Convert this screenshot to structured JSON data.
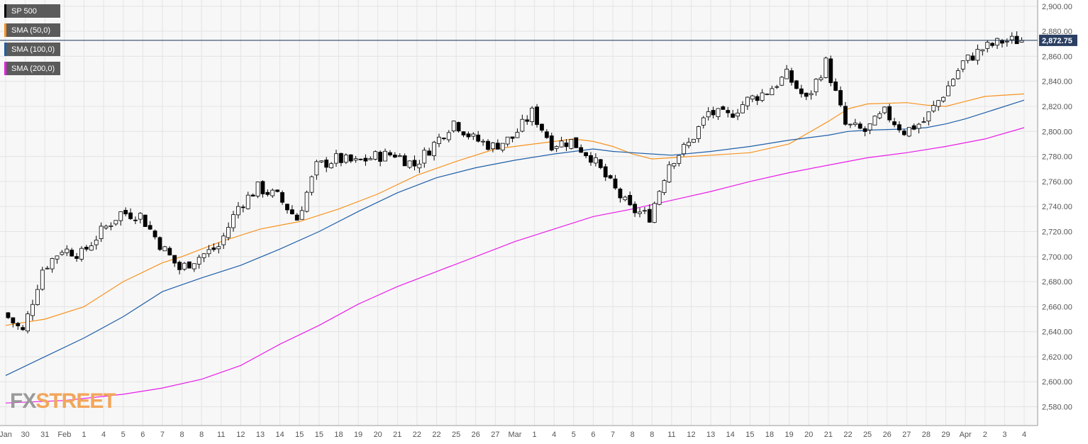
{
  "legend": [
    {
      "label": "SP 500",
      "color": "#000000"
    },
    {
      "label": "SMA (50,0)",
      "color": "#f7931e"
    },
    {
      "label": "SMA (100,0)",
      "color": "#1f5fa8"
    },
    {
      "label": "SMA (200,0)",
      "color": "#e81ee8"
    }
  ],
  "watermark": {
    "part1": "FX",
    "part2": "STREET"
  },
  "chart_data": {
    "type": "candlestick",
    "title": "",
    "ylim": [
      2565,
      2905
    ],
    "y_ticks": [
      2580,
      2600,
      2620,
      2640,
      2660,
      2680,
      2700,
      2720,
      2740,
      2760,
      2780,
      2800,
      2820,
      2840,
      2860,
      2880,
      2900
    ],
    "y_tick_labels": [
      "2,580.00",
      "2,600.00",
      "2,620.00",
      "2,640.00",
      "2,660.00",
      "2,680.00",
      "2,700.00",
      "2,720.00",
      "2,740.00",
      "2,760.00",
      "2,780.00",
      "2,800.00",
      "2,820.00",
      "2,840.00",
      "2,860.00",
      "2,880.00",
      "2,900.00"
    ],
    "x_ticks": [
      "Jan",
      "30",
      "31",
      "Feb",
      "1",
      "4",
      "5",
      "6",
      "7",
      "8",
      "8",
      "11",
      "12",
      "13",
      "14",
      "15",
      "15",
      "18",
      "19",
      "20",
      "21",
      "22",
      "22",
      "25",
      "26",
      "27",
      "Mar",
      "1",
      "4",
      "5",
      "6",
      "7",
      "8",
      "8",
      "11",
      "12",
      "13",
      "14",
      "15",
      "18",
      "19",
      "20",
      "21",
      "22",
      "25",
      "26",
      "27",
      "28",
      "29",
      "Apr",
      "2",
      "3",
      "4"
    ],
    "last_price": 2872.75,
    "last_price_label": "2,872.75",
    "colors": {
      "background": "#f7f7f7",
      "grid": "#e4e4e4",
      "up_body": "#ffffff",
      "down_body": "#000000",
      "price_line": "#1a2f55",
      "price_label_bg": "#2b3f63"
    },
    "anchors": [
      {
        "label": "Jan",
        "close": 2655
      },
      {
        "label": "30",
        "close": 2640
      },
      {
        "label": "31",
        "close": 2690
      },
      {
        "label": "Feb",
        "close": 2706
      },
      {
        "label": "1",
        "close": 2702
      },
      {
        "label": "4",
        "close": 2720
      },
      {
        "label": "5",
        "close": 2735
      },
      {
        "label": "6",
        "close": 2733
      },
      {
        "label": "7",
        "close": 2710
      },
      {
        "label": "8",
        "close": 2690
      },
      {
        "label": "8",
        "close": 2700
      },
      {
        "label": "11",
        "close": 2708
      },
      {
        "label": "12",
        "close": 2740
      },
      {
        "label": "13",
        "close": 2755
      },
      {
        "label": "14",
        "close": 2748
      },
      {
        "label": "15",
        "close": 2730
      },
      {
        "label": "15",
        "close": 2772
      },
      {
        "label": "18",
        "close": 2778
      },
      {
        "label": "19",
        "close": 2775
      },
      {
        "label": "20",
        "close": 2780
      },
      {
        "label": "21",
        "close": 2782
      },
      {
        "label": "22",
        "close": 2773
      },
      {
        "label": "22",
        "close": 2790
      },
      {
        "label": "25",
        "close": 2808
      },
      {
        "label": "26",
        "close": 2794
      },
      {
        "label": "27",
        "close": 2788
      },
      {
        "label": "Mar",
        "close": 2795
      },
      {
        "label": "1",
        "close": 2815
      },
      {
        "label": "4",
        "close": 2790
      },
      {
        "label": "5",
        "close": 2792
      },
      {
        "label": "6",
        "close": 2780
      },
      {
        "label": "7",
        "close": 2758
      },
      {
        "label": "8",
        "close": 2738
      },
      {
        "label": "8",
        "close": 2732
      },
      {
        "label": "11",
        "close": 2775
      },
      {
        "label": "12",
        "close": 2790
      },
      {
        "label": "13",
        "close": 2815
      },
      {
        "label": "14",
        "close": 2812
      },
      {
        "label": "15",
        "close": 2825
      },
      {
        "label": "18",
        "close": 2832
      },
      {
        "label": "19",
        "close": 2845
      },
      {
        "label": "20",
        "close": 2825
      },
      {
        "label": "21",
        "close": 2855
      },
      {
        "label": "22",
        "close": 2805
      },
      {
        "label": "25",
        "close": 2800
      },
      {
        "label": "26",
        "close": 2815
      },
      {
        "label": "27",
        "close": 2800
      },
      {
        "label": "28",
        "close": 2808
      },
      {
        "label": "29",
        "close": 2830
      },
      {
        "label": "Apr",
        "close": 2855
      },
      {
        "label": "2",
        "close": 2866
      },
      {
        "label": "3",
        "close": 2872
      },
      {
        "label": "4",
        "close": 2873
      }
    ],
    "series": [
      {
        "name": "SMA (50,0)",
        "color": "#f7931e",
        "points": [
          [
            0,
            2645
          ],
          [
            2,
            2650
          ],
          [
            4,
            2660
          ],
          [
            6,
            2680
          ],
          [
            8,
            2695
          ],
          [
            9,
            2700
          ],
          [
            11,
            2712
          ],
          [
            13,
            2722
          ],
          [
            15,
            2728
          ],
          [
            17,
            2738
          ],
          [
            19,
            2750
          ],
          [
            21,
            2765
          ],
          [
            23,
            2776
          ],
          [
            25,
            2786
          ],
          [
            27,
            2790
          ],
          [
            29,
            2794
          ],
          [
            30,
            2792
          ],
          [
            31,
            2788
          ],
          [
            32,
            2782
          ],
          [
            33,
            2778
          ],
          [
            34,
            2779
          ],
          [
            36,
            2781
          ],
          [
            38,
            2783
          ],
          [
            40,
            2790
          ],
          [
            42,
            2808
          ],
          [
            43,
            2818
          ],
          [
            44,
            2822
          ],
          [
            46,
            2823
          ],
          [
            47,
            2821
          ],
          [
            48,
            2820
          ],
          [
            49,
            2824
          ],
          [
            50,
            2828
          ],
          [
            52,
            2830
          ]
        ]
      },
      {
        "name": "SMA (100,0)",
        "color": "#1f5fa8",
        "points": [
          [
            0,
            2605
          ],
          [
            2,
            2620
          ],
          [
            4,
            2635
          ],
          [
            6,
            2652
          ],
          [
            8,
            2672
          ],
          [
            10,
            2683
          ],
          [
            12,
            2693
          ],
          [
            14,
            2706
          ],
          [
            16,
            2720
          ],
          [
            18,
            2736
          ],
          [
            20,
            2751
          ],
          [
            22,
            2763
          ],
          [
            24,
            2771
          ],
          [
            26,
            2777
          ],
          [
            28,
            2782
          ],
          [
            30,
            2786
          ],
          [
            31,
            2784
          ],
          [
            32,
            2783
          ],
          [
            33,
            2782
          ],
          [
            34,
            2781
          ],
          [
            36,
            2784
          ],
          [
            38,
            2788
          ],
          [
            40,
            2793
          ],
          [
            42,
            2797
          ],
          [
            43,
            2800
          ],
          [
            44,
            2801
          ],
          [
            46,
            2802
          ],
          [
            47,
            2803
          ],
          [
            48,
            2806
          ],
          [
            49,
            2810
          ],
          [
            50,
            2815
          ],
          [
            52,
            2825
          ]
        ]
      },
      {
        "name": "SMA (200,0)",
        "color": "#e81ee8",
        "points": [
          [
            0,
            2583
          ],
          [
            3,
            2585
          ],
          [
            6,
            2590
          ],
          [
            8,
            2595
          ],
          [
            10,
            2602
          ],
          [
            12,
            2613
          ],
          [
            14,
            2630
          ],
          [
            16,
            2645
          ],
          [
            18,
            2662
          ],
          [
            20,
            2676
          ],
          [
            22,
            2688
          ],
          [
            24,
            2700
          ],
          [
            26,
            2712
          ],
          [
            28,
            2722
          ],
          [
            30,
            2732
          ],
          [
            32,
            2738
          ],
          [
            34,
            2745
          ],
          [
            36,
            2752
          ],
          [
            38,
            2760
          ],
          [
            40,
            2767
          ],
          [
            42,
            2773
          ],
          [
            44,
            2779
          ],
          [
            46,
            2783
          ],
          [
            48,
            2788
          ],
          [
            50,
            2794
          ],
          [
            52,
            2803
          ]
        ]
      }
    ]
  }
}
